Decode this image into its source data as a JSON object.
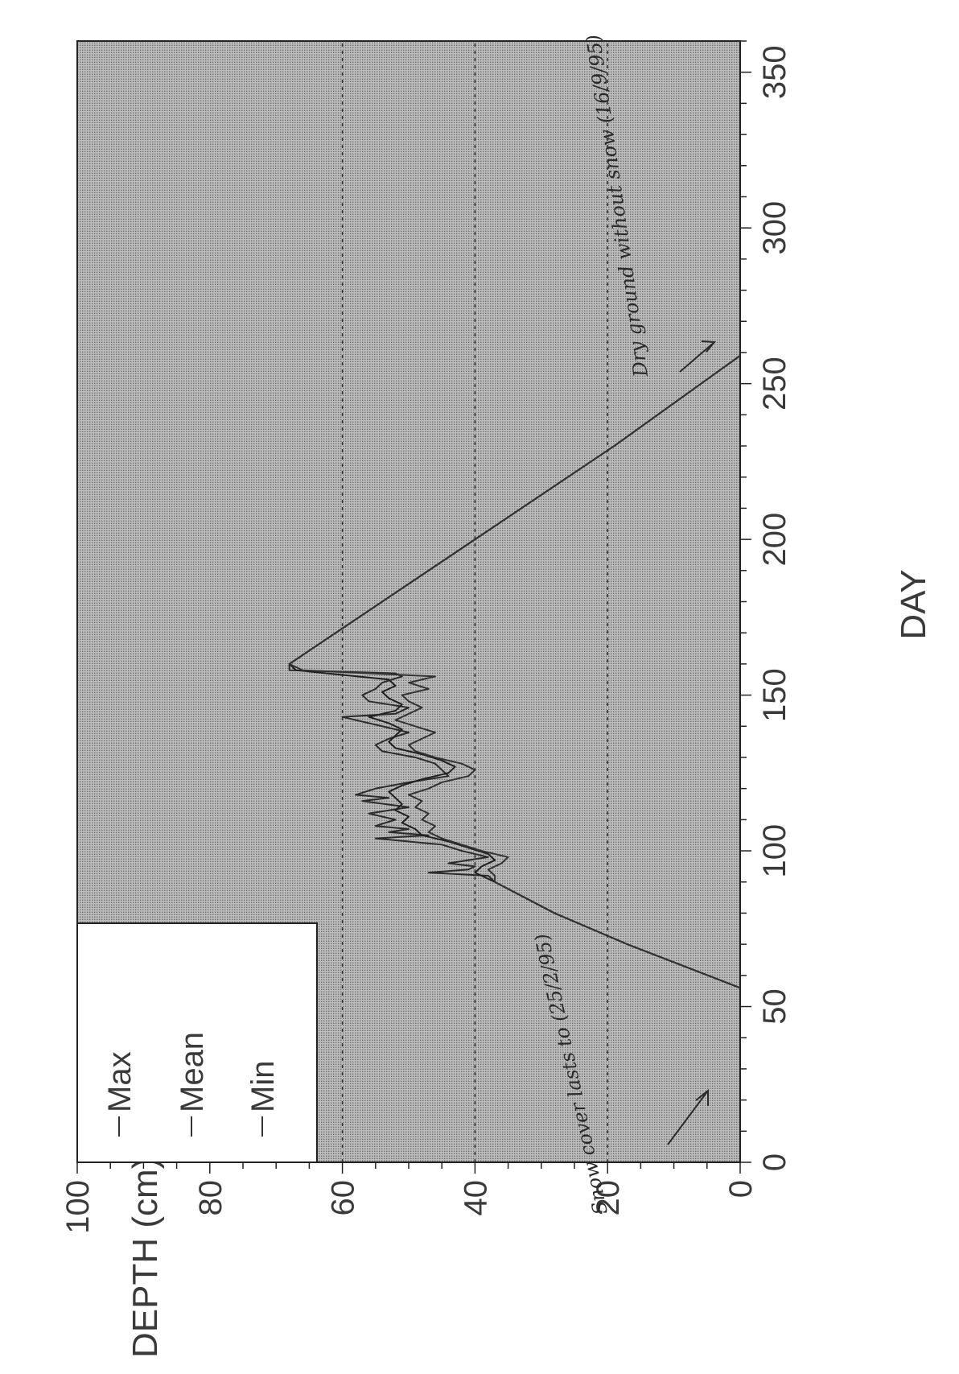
{
  "chart_data": {
    "type": "line",
    "title": "",
    "ylabel": "DEPTH (cm)",
    "xlabel": "DAY",
    "xlim": [
      0,
      360
    ],
    "ylim": [
      0,
      100
    ],
    "xticks": [
      0,
      50,
      100,
      150,
      200,
      250,
      300,
      350
    ],
    "yticks": [
      0,
      20,
      40,
      60,
      80,
      100
    ],
    "grid": "dotted horizontal at 20, 40, 60",
    "legend": {
      "placement": "top-left",
      "entries": [
        "Max",
        "Mean",
        "Min"
      ]
    },
    "series": [
      {
        "name": "Max",
        "x": [
          56,
          70,
          80,
          90,
          92,
          93,
          94,
          95,
          96,
          98,
          100,
          102,
          104,
          105,
          106,
          107,
          108,
          110,
          112,
          114,
          116,
          117,
          118,
          120,
          122,
          124,
          126,
          128,
          130,
          132,
          134,
          136,
          138,
          140,
          142,
          143,
          144,
          146,
          148,
          150,
          152,
          154,
          156,
          157,
          158,
          160,
          200,
          230,
          259
        ],
        "y": [
          0,
          17,
          28,
          37,
          38,
          47,
          41,
          40,
          44,
          38,
          42,
          45,
          55,
          47,
          53,
          50,
          55,
          52,
          56,
          50,
          57,
          53,
          58,
          55,
          50,
          44,
          45,
          46,
          49,
          54,
          55,
          53,
          50,
          54,
          58,
          60,
          52,
          50,
          56,
          57,
          55,
          54,
          51,
          52,
          68,
          68,
          40,
          19,
          0
        ]
      },
      {
        "name": "Mean",
        "x": [
          56,
          70,
          80,
          90,
          93,
          95,
          97,
          99,
          101,
          103,
          105,
          107,
          109,
          111,
          113,
          115,
          117,
          119,
          121,
          123,
          125,
          127,
          129,
          131,
          133,
          135,
          137,
          139,
          141,
          143,
          145,
          147,
          149,
          151,
          153,
          155,
          158,
          160,
          200,
          230,
          259
        ],
        "y": [
          0,
          17,
          28,
          37,
          40,
          39,
          37,
          38,
          41,
          44,
          48,
          49,
          51,
          50,
          52,
          51,
          52,
          53,
          51,
          48,
          44,
          43,
          45,
          48,
          52,
          53,
          52,
          51,
          53,
          56,
          52,
          51,
          53,
          54,
          52,
          53,
          67,
          68,
          40,
          19,
          0
        ]
      },
      {
        "name": "Min",
        "x": [
          56,
          70,
          80,
          90,
          92,
          94,
          96,
          98,
          100,
          102,
          104,
          106,
          108,
          110,
          112,
          114,
          116,
          118,
          120,
          122,
          124,
          126,
          128,
          130,
          132,
          134,
          136,
          138,
          140,
          142,
          144,
          146,
          148,
          150,
          152,
          154,
          156,
          158,
          160,
          200,
          230,
          259
        ],
        "y": [
          0,
          17,
          28,
          37,
          37,
          38,
          36,
          35,
          39,
          42,
          45,
          47,
          46,
          48,
          47,
          49,
          48,
          50,
          47,
          45,
          41,
          40,
          42,
          46,
          49,
          50,
          48,
          46,
          49,
          52,
          50,
          48,
          50,
          51,
          47,
          50,
          46,
          66,
          68,
          40,
          19,
          0
        ]
      }
    ],
    "annotations": [
      {
        "text": "Snow cover lasts to (25/2/95)",
        "near": "left end of line"
      },
      {
        "text": "Dry ground without snow (16/9/95)",
        "near": "right end of line"
      }
    ]
  }
}
